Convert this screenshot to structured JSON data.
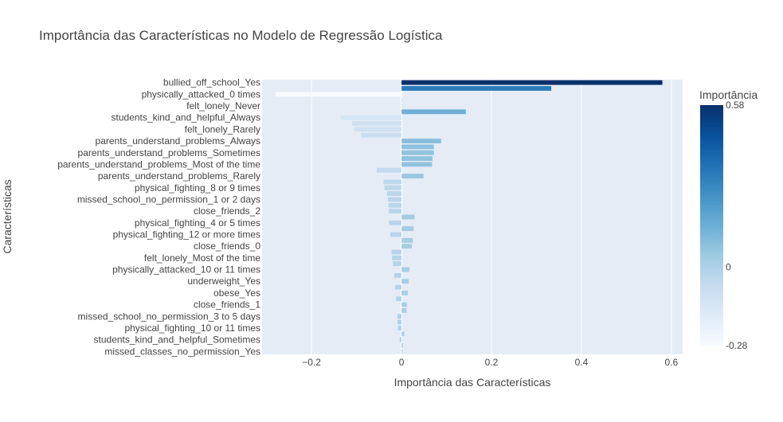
{
  "chart_data": {
    "type": "bar",
    "orientation": "horizontal",
    "title": "Importância das Características no Modelo de Regressão Logística",
    "xlabel": "Importância das Características",
    "ylabel": "Características",
    "xlim": [
      -0.31,
      0.625
    ],
    "xticks": [
      -0.2,
      0,
      0.2,
      0.4,
      0.6
    ],
    "xtick_labels": [
      "−0.2",
      "0",
      "0.2",
      "0.4",
      "0.6"
    ],
    "grid": true,
    "colorbar": {
      "title": "Importância",
      "min": -0.28,
      "max": 0.58,
      "tick_labels": [
        "0.58",
        "0",
        "-0.28"
      ],
      "tick_values": [
        0.58,
        0,
        -0.28
      ],
      "colorscale": [
        "#f7fbff",
        "#deebf7",
        "#c6dbef",
        "#9ecae1",
        "#6baed6",
        "#4292c6",
        "#2171b5",
        "#08519c",
        "#08306b"
      ]
    },
    "bars": [
      {
        "label": "bullied_off_school_Yes",
        "value": 0.58
      },
      {
        "label": "",
        "value": 0.333
      },
      {
        "label": "physically_attacked_0 times",
        "value": -0.28
      },
      {
        "label": "",
        "value": 0.0
      },
      {
        "label": "felt_lonely_Never",
        "value": 0.0
      },
      {
        "label": "",
        "value": 0.143
      },
      {
        "label": "students_kind_and_helpful_Always",
        "value": -0.135
      },
      {
        "label": "",
        "value": -0.11
      },
      {
        "label": "felt_lonely_Rarely",
        "value": -0.105
      },
      {
        "label": "",
        "value": -0.09
      },
      {
        "label": "parents_understand_problems_Always",
        "value": 0.088
      },
      {
        "label": "",
        "value": 0.072
      },
      {
        "label": "parents_understand_problems_Sometimes",
        "value": 0.072
      },
      {
        "label": "",
        "value": 0.069
      },
      {
        "label": "parents_understand_problems_Most of the time",
        "value": 0.068
      },
      {
        "label": "",
        "value": -0.055
      },
      {
        "label": "parents_understand_problems_Rarely",
        "value": 0.049
      },
      {
        "label": "",
        "value": -0.04
      },
      {
        "label": "physical_fighting_8 or 9 times",
        "value": -0.038
      },
      {
        "label": "",
        "value": -0.032
      },
      {
        "label": "missed_school_no_permission_1 or 2 days",
        "value": -0.03
      },
      {
        "label": "",
        "value": -0.029
      },
      {
        "label": "close_friends_2",
        "value": -0.028
      },
      {
        "label": "",
        "value": 0.029
      },
      {
        "label": "physical_fighting_4 or 5 times",
        "value": -0.028
      },
      {
        "label": "",
        "value": 0.027
      },
      {
        "label": "physical_fighting_12 or more times",
        "value": -0.025
      },
      {
        "label": "",
        "value": 0.025
      },
      {
        "label": "close_friends_0",
        "value": 0.023
      },
      {
        "label": "",
        "value": -0.022
      },
      {
        "label": "felt_lonely_Most of the time",
        "value": -0.021
      },
      {
        "label": "",
        "value": -0.019
      },
      {
        "label": "physically_attacked_10 or 11 times",
        "value": 0.018
      },
      {
        "label": "",
        "value": -0.016
      },
      {
        "label": "underweight_Yes",
        "value": 0.016
      },
      {
        "label": "",
        "value": -0.014
      },
      {
        "label": "obese_Yes",
        "value": 0.014
      },
      {
        "label": "",
        "value": -0.012
      },
      {
        "label": "close_friends_1",
        "value": 0.012
      },
      {
        "label": "",
        "value": 0.011
      },
      {
        "label": "missed_school_no_permission_3 to 5 days",
        "value": -0.009
      },
      {
        "label": "",
        "value": -0.009
      },
      {
        "label": "physical_fighting_10 or 11 times",
        "value": -0.008
      },
      {
        "label": "",
        "value": 0.006
      },
      {
        "label": "students_kind_and_helpful_Sometimes",
        "value": -0.004
      },
      {
        "label": "",
        "value": 0.003
      },
      {
        "label": "missed_classes_no_permission_Yes",
        "value": 0.002
      }
    ]
  }
}
